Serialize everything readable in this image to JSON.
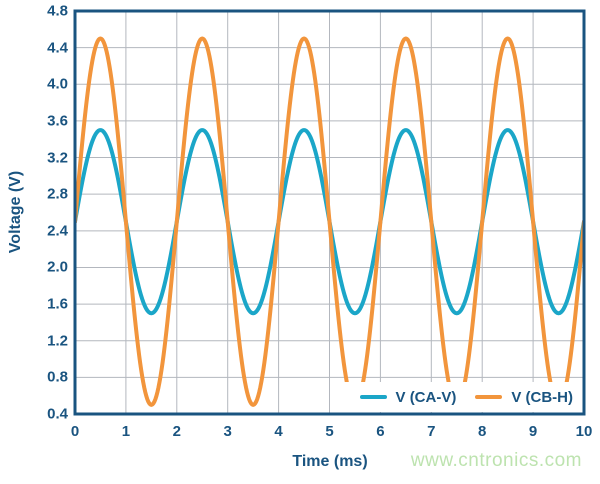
{
  "watermark": "www.cntronics.com",
  "colors": {
    "navy": "#1A5480",
    "grid": "#B3B7BE",
    "plot_border": "#1A5480",
    "watermark_green": "#BDE3AF",
    "background": "#FFFFFF"
  },
  "chart_data": {
    "type": "line",
    "title": "",
    "xlabel": "Time (ms)",
    "ylabel": "Voltage (V)",
    "xlim": [
      0,
      10
    ],
    "ylim": [
      0.4,
      4.8
    ],
    "x_ticks": [
      0,
      1,
      2,
      3,
      4,
      5,
      6,
      7,
      8,
      9,
      10
    ],
    "y_ticks": [
      0.4,
      0.8,
      1.2,
      1.6,
      2.0,
      2.4,
      2.8,
      3.2,
      3.6,
      4.0,
      4.4,
      4.8
    ],
    "grid": true,
    "legend_position": "bottom-right-inside",
    "waveform": "sine",
    "period_ms": 2,
    "samples_x_ms": [
      0,
      0.5,
      1,
      1.5,
      2,
      2.5,
      3,
      3.5,
      4,
      4.5,
      5,
      5.5,
      6,
      6.5,
      7,
      7.5,
      8,
      8.5,
      9,
      9.5,
      10
    ],
    "series": [
      {
        "name": "V (CA-V)",
        "color": "#1BA6C8",
        "offset_v": 2.5,
        "amplitude_v": 1.0,
        "phase_deg": 0,
        "values": [
          2.5,
          3.5,
          2.5,
          1.5,
          2.5,
          3.5,
          2.5,
          1.5,
          2.5,
          3.5,
          2.5,
          1.5,
          2.5,
          3.5,
          2.5,
          1.5,
          2.5,
          3.5,
          2.5,
          1.5,
          2.5
        ]
      },
      {
        "name": "V (CB-H)",
        "color": "#F2953C",
        "offset_v": 2.5,
        "amplitude_v": 2.0,
        "phase_deg": 0,
        "values": [
          2.5,
          4.5,
          2.5,
          0.5,
          2.5,
          4.5,
          2.5,
          0.5,
          2.5,
          4.5,
          2.5,
          0.5,
          2.5,
          4.5,
          2.5,
          0.5,
          2.5,
          4.5,
          2.5,
          0.5,
          2.5
        ]
      }
    ]
  }
}
